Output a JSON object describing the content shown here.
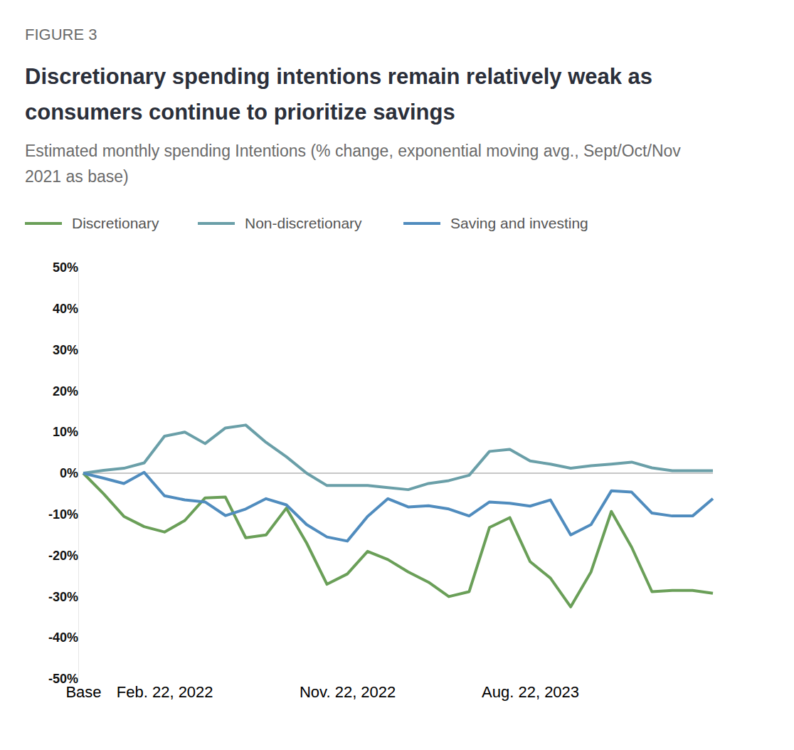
{
  "chart_data": {
    "type": "line",
    "label": "FIGURE 3",
    "title": "Discretionary spending intentions remain relatively weak as consumers continue to prioritize savings",
    "subtitle": "Estimated monthly spending Intentions (% change, exponential moving avg., Sept/Oct/Nov 2021 as base)",
    "categories": [
      "Base",
      null,
      null,
      null,
      "Feb. 22, 2022",
      null,
      null,
      null,
      null,
      null,
      null,
      null,
      null,
      "Nov. 22, 2022",
      null,
      null,
      null,
      null,
      null,
      null,
      null,
      null,
      "Aug. 22, 2023",
      null,
      null,
      null,
      null,
      null,
      null,
      null,
      null,
      null
    ],
    "series": [
      {
        "name": "Discretionary",
        "color": "#6a9f58",
        "values": [
          0,
          -5,
          -10.5,
          -13,
          -14.3,
          -11.5,
          -6,
          -5.8,
          -15.7,
          -15,
          -8.5,
          -17,
          -27,
          -24.5,
          -19,
          -21,
          -24,
          -26.5,
          -30,
          -28.8,
          -13.2,
          -10.8,
          -21.5,
          -25.5,
          -32.5,
          -24,
          -9.3,
          -18,
          -28.8,
          -28.5,
          -28.5,
          -29.2
        ]
      },
      {
        "name": "Non-discretionary",
        "color": "#6a9fa8",
        "values": [
          0,
          0.7,
          1.2,
          2.5,
          9,
          10,
          7.2,
          11,
          11.7,
          7.5,
          4,
          0,
          -3,
          -3,
          -3,
          -3.5,
          -4,
          -2.5,
          -1.8,
          -0.5,
          5.3,
          5.8,
          3,
          2.2,
          1.2,
          1.8,
          2.2,
          2.7,
          1.3,
          0.6,
          0.6,
          0.6
        ]
      },
      {
        "name": "Saving and investing",
        "color": "#508cbe",
        "values": [
          0,
          -1.2,
          -2.5,
          0.2,
          -5.5,
          -6.5,
          -7,
          -10.3,
          -8.7,
          -6.2,
          -7.7,
          -12.5,
          -15.5,
          -16.5,
          -10.5,
          -6.2,
          -8.2,
          -7.9,
          -8.7,
          -10.4,
          -7,
          -7.3,
          -8,
          -6.5,
          -15,
          -12.5,
          -4.3,
          -4.6,
          -9.7,
          -10.4,
          -10.4,
          -6.2
        ]
      }
    ],
    "ylim": [
      -50,
      50
    ],
    "yticks": [
      {
        "value": 50,
        "label": "50%"
      },
      {
        "value": 40,
        "label": "40%"
      },
      {
        "value": 30,
        "label": "30%"
      },
      {
        "value": 20,
        "label": "20%"
      },
      {
        "value": 10,
        "label": "10%"
      },
      {
        "value": 0,
        "label": "0%"
      },
      {
        "value": -10,
        "label": "-10%"
      },
      {
        "value": -20,
        "label": "-20%"
      },
      {
        "value": -30,
        "label": "-30%"
      },
      {
        "value": -40,
        "label": "-40%"
      },
      {
        "value": -50,
        "label": "-50%"
      }
    ],
    "grid": false,
    "legend": "top-left"
  }
}
